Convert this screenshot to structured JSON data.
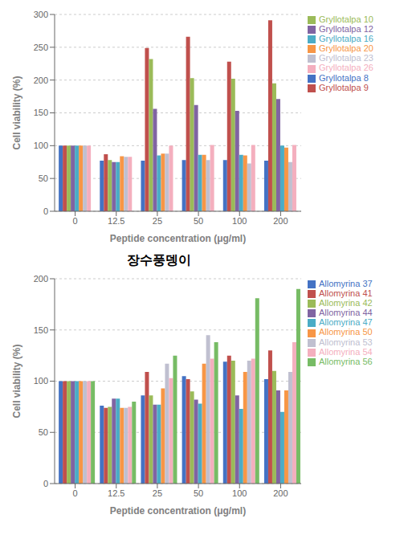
{
  "chart_data": [
    {
      "type": "bar",
      "xlabel": "Peptide concentration (μg/ml)",
      "ylabel": "Cell viability (%)",
      "categories": [
        "0",
        "12.5",
        "25",
        "50",
        "100",
        "200"
      ],
      "series": [
        {
          "name": "Gryllotalpa 8",
          "color": "#4472c4",
          "values": [
            100,
            77,
            77,
            78,
            78,
            77
          ]
        },
        {
          "name": "Gryllotalpa 9",
          "color": "#c0504d",
          "values": [
            100,
            87,
            249,
            266,
            228,
            291
          ]
        },
        {
          "name": "Gryllotalpa 10",
          "color": "#9bbb59",
          "values": [
            100,
            78,
            232,
            203,
            202,
            195
          ]
        },
        {
          "name": "Gryllotalpa 12",
          "color": "#8064a2",
          "values": [
            100,
            75,
            156,
            162,
            153,
            171
          ]
        },
        {
          "name": "Gryllotalpa 16",
          "color": "#4bacc6",
          "values": [
            100,
            75,
            85,
            86,
            86,
            100
          ]
        },
        {
          "name": "Gryllotalpa 20",
          "color": "#f79646",
          "values": [
            100,
            84,
            88,
            86,
            85,
            97
          ]
        },
        {
          "name": "Gryllotalpa 23",
          "color": "#c0c0d0",
          "values": [
            100,
            83,
            88,
            78,
            73,
            75
          ]
        },
        {
          "name": "Gryllotalpa 26",
          "color": "#f4afbe",
          "values": [
            100,
            83,
            100,
            101,
            101,
            101
          ]
        }
      ],
      "ylim": [
        0,
        300
      ],
      "yticks": [
        0,
        50,
        100,
        150,
        200,
        250,
        300
      ],
      "grid": true,
      "legend": "right"
    },
    {
      "type": "bar",
      "title": "장수풍뎅이",
      "xlabel": "Peptide concentration (μg/ml)",
      "ylabel": "Cell viability (%)",
      "categories": [
        "0",
        "12.5",
        "25",
        "50",
        "100",
        "200"
      ],
      "series": [
        {
          "name": "Allomyrina 37",
          "color": "#4472c4",
          "values": [
            100,
            76,
            86,
            105,
            119,
            102
          ]
        },
        {
          "name": "Allomyrina 41",
          "color": "#c0504d",
          "values": [
            100,
            74,
            109,
            102,
            125,
            130
          ]
        },
        {
          "name": "Allomyrina 42",
          "color": "#9bbb59",
          "values": [
            100,
            75,
            86,
            90,
            120,
            110
          ]
        },
        {
          "name": "Allomyrina 44",
          "color": "#8064a2",
          "values": [
            100,
            83,
            77,
            82,
            86,
            91
          ]
        },
        {
          "name": "Allomyrina 47",
          "color": "#4bacc6",
          "values": [
            100,
            83,
            77,
            78,
            73,
            70
          ]
        },
        {
          "name": "Allomyrina 50",
          "color": "#f79646",
          "values": [
            100,
            74,
            93,
            117,
            109,
            91
          ]
        },
        {
          "name": "Allomyrina 53",
          "color": "#c0c0d0",
          "values": [
            100,
            74,
            117,
            145,
            120,
            109
          ]
        },
        {
          "name": "Allomyrina 54",
          "color": "#f4afbe",
          "values": [
            100,
            75,
            103,
            122,
            122,
            138
          ]
        },
        {
          "name": "Allomyrina 56",
          "color": "#77bc65",
          "values": [
            100,
            80,
            125,
            138,
            181,
            190
          ]
        }
      ],
      "ylim": [
        0,
        200
      ],
      "yticks": [
        0,
        50,
        100,
        150,
        200
      ],
      "grid": true,
      "legend": "right"
    }
  ]
}
